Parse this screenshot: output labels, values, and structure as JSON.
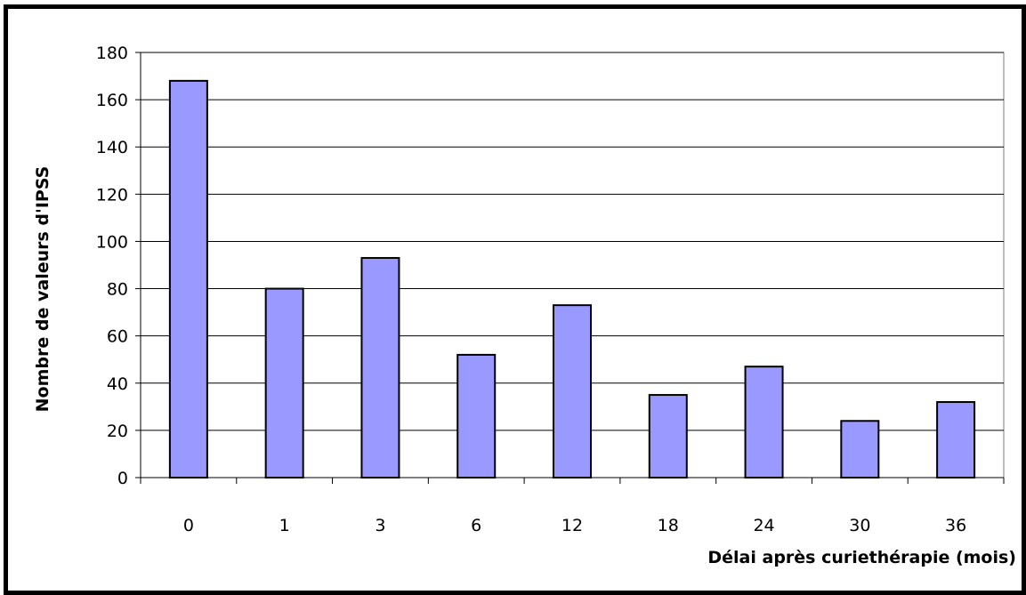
{
  "chart_data": {
    "type": "bar",
    "categories": [
      "0",
      "1",
      "3",
      "6",
      "12",
      "18",
      "24",
      "30",
      "36"
    ],
    "values": [
      168,
      80,
      93,
      52,
      73,
      35,
      47,
      24,
      32
    ],
    "xlabel": "Délai après curiethérapie (mois)",
    "ylabel": "Nombre de valeurs d'IPSS",
    "ylim": [
      0,
      180
    ],
    "yticks": [
      "0",
      "20",
      "40",
      "60",
      "80",
      "100",
      "120",
      "140",
      "160",
      "180"
    ],
    "grid": true,
    "legend": "none",
    "bar_color": "#9999ff"
  }
}
